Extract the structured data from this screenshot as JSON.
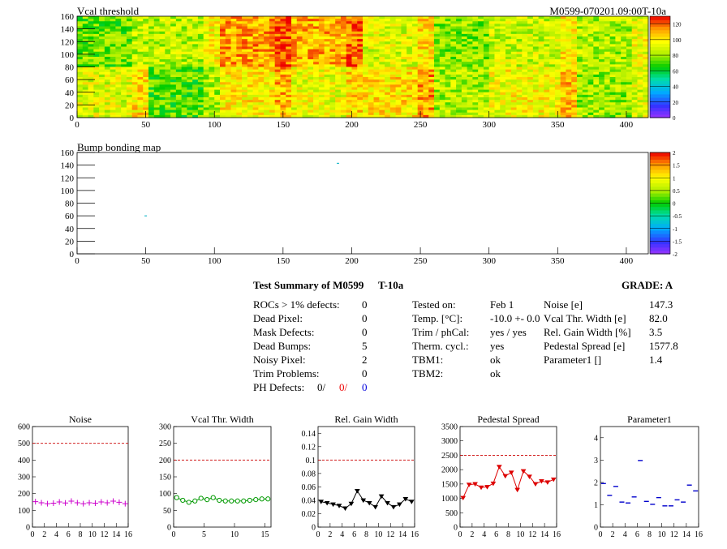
{
  "title_right": "M0599-070201.09:00T-10a",
  "vcal_map": {
    "title": "Vcal threshold",
    "x_ticks": [
      "0",
      "50",
      "100",
      "150",
      "200",
      "250",
      "300",
      "350",
      "400"
    ],
    "y_ticks": [
      "0",
      "20",
      "40",
      "60",
      "80",
      "100",
      "120",
      "140",
      "160"
    ],
    "z_ticks": [
      "0",
      "20",
      "40",
      "60",
      "80",
      "100",
      "120"
    ],
    "xlim": [
      0,
      416
    ],
    "ylim": [
      0,
      160
    ],
    "zlim": [
      0,
      130
    ]
  },
  "bump_map": {
    "title": "Bump bonding map",
    "x_ticks": [
      "0",
      "50",
      "100",
      "150",
      "200",
      "250",
      "300",
      "350",
      "400"
    ],
    "y_ticks": [
      "0",
      "20",
      "40",
      "60",
      "80",
      "100",
      "120",
      "140",
      "160"
    ],
    "z_ticks": [
      "-2",
      "-1.5",
      "-1",
      "-0.5",
      "0",
      "0.5",
      "1",
      "1.5",
      "2"
    ],
    "points": [
      [
        190,
        143
      ],
      [
        50,
        60
      ]
    ]
  },
  "summary": {
    "header": "Test Summary of M0599",
    "temp_label": "T-10a",
    "grade": "GRADE:  A",
    "left_rows": [
      {
        "label": "ROCs > 1% defects:",
        "value": "0"
      },
      {
        "label": "Dead Pixel:",
        "value": "0"
      },
      {
        "label": "Mask Defects:",
        "value": "0"
      },
      {
        "label": "Dead Bumps:",
        "value": "5"
      },
      {
        "label": "Noisy Pixel:",
        "value": "2"
      },
      {
        "label": "Trim Problems:",
        "value": "0"
      }
    ],
    "ph_defects": {
      "label": "PH Defects:",
      "v1": "0/",
      "v2": "0/",
      "v3": "0"
    },
    "mid_rows": [
      {
        "label": "Tested on:",
        "value": "Feb 1"
      },
      {
        "label": "Temp. [°C]:",
        "value": "-10.0 +- 0.0"
      },
      {
        "label": "Trim / phCal:",
        "value": "yes / yes"
      },
      {
        "label": "Therm. cycl.:",
        "value": "yes"
      },
      {
        "label": "TBM1:",
        "value": "ok"
      },
      {
        "label": "TBM2:",
        "value": "ok"
      }
    ],
    "right_rows": [
      {
        "label": "Noise [e]",
        "value": "147.3"
      },
      {
        "label": "Vcal Thr. Width [e]",
        "value": "82.0"
      },
      {
        "label": "Rel. Gain Width [%]",
        "value": "3.5"
      },
      {
        "label": "Pedestal Spread [e]",
        "value": "1577.8"
      },
      {
        "label": "Parameter1 []",
        "value": "1.4"
      }
    ]
  },
  "chart_data": [
    {
      "type": "scatter",
      "title": "Noise",
      "xlim": [
        0,
        16
      ],
      "ylim": [
        0,
        600
      ],
      "x_ticks": [
        "0",
        "2",
        "4",
        "6",
        "8",
        "10",
        "12",
        "14",
        "16"
      ],
      "y_ticks": [
        "0",
        "100",
        "200",
        "300",
        "400",
        "500",
        "600"
      ],
      "threshold": 500,
      "color": "#cc00cc",
      "marker": "plus",
      "values": [
        152,
        145,
        140,
        143,
        150,
        144,
        155,
        145,
        140,
        145,
        143,
        150,
        145,
        155,
        148,
        140
      ]
    },
    {
      "type": "line",
      "title": "Vcal Thr. Width",
      "xlim": [
        0,
        16
      ],
      "ylim": [
        0,
        300
      ],
      "x_ticks": [
        "0",
        "5",
        "10",
        "15"
      ],
      "y_ticks": [
        "0",
        "50",
        "100",
        "150",
        "200",
        "250",
        "300"
      ],
      "threshold": 200,
      "color": "#009900",
      "marker": "circle",
      "values": [
        88,
        80,
        74,
        78,
        86,
        82,
        88,
        80,
        78,
        78,
        78,
        78,
        80,
        82,
        84,
        84
      ]
    },
    {
      "type": "line",
      "title": "Rel. Gain Width",
      "xlim": [
        0,
        16
      ],
      "ylim": [
        0,
        0.15
      ],
      "x_ticks": [
        "0",
        "2",
        "4",
        "6",
        "8",
        "10",
        "12",
        "14",
        "16"
      ],
      "y_ticks": [
        "0",
        "0.02",
        "0.04",
        "0.06",
        "0.08",
        "0.1",
        "0.12",
        "0.14"
      ],
      "threshold": 0.1,
      "color": "#000000",
      "marker": "triangle",
      "values": [
        0.038,
        0.036,
        0.034,
        0.032,
        0.028,
        0.035,
        0.054,
        0.04,
        0.036,
        0.03,
        0.046,
        0.036,
        0.03,
        0.034,
        0.042,
        0.038
      ]
    },
    {
      "type": "line",
      "title": "Pedestal Spread",
      "xlim": [
        0,
        16
      ],
      "ylim": [
        0,
        3500
      ],
      "x_ticks": [
        "0",
        "2",
        "4",
        "6",
        "8",
        "10",
        "12",
        "14",
        "16"
      ],
      "y_ticks": [
        "0",
        "500",
        "1000",
        "1500",
        "2000",
        "2500",
        "3000",
        "3500"
      ],
      "threshold": 2500,
      "color": "#dd0000",
      "marker": "triangle",
      "values": [
        1020,
        1480,
        1500,
        1380,
        1400,
        1520,
        2100,
        1780,
        1900,
        1300,
        1950,
        1760,
        1500,
        1600,
        1560,
        1660
      ]
    },
    {
      "type": "scatter",
      "title": "Parameter1",
      "xlim": [
        0,
        16
      ],
      "ylim": [
        0,
        4.5
      ],
      "x_ticks": [
        "0",
        "2",
        "4",
        "6",
        "8",
        "10",
        "12",
        "14",
        "16"
      ],
      "y_ticks": [
        "0",
        "1",
        "2",
        "3",
        "4"
      ],
      "threshold": null,
      "color": "#0000cc",
      "marker": "dash",
      "values": [
        1.95,
        1.42,
        1.82,
        1.12,
        1.08,
        1.35,
        2.98,
        1.15,
        1.02,
        1.32,
        0.95,
        0.95,
        1.22,
        1.12,
        1.88,
        1.62
      ]
    }
  ]
}
